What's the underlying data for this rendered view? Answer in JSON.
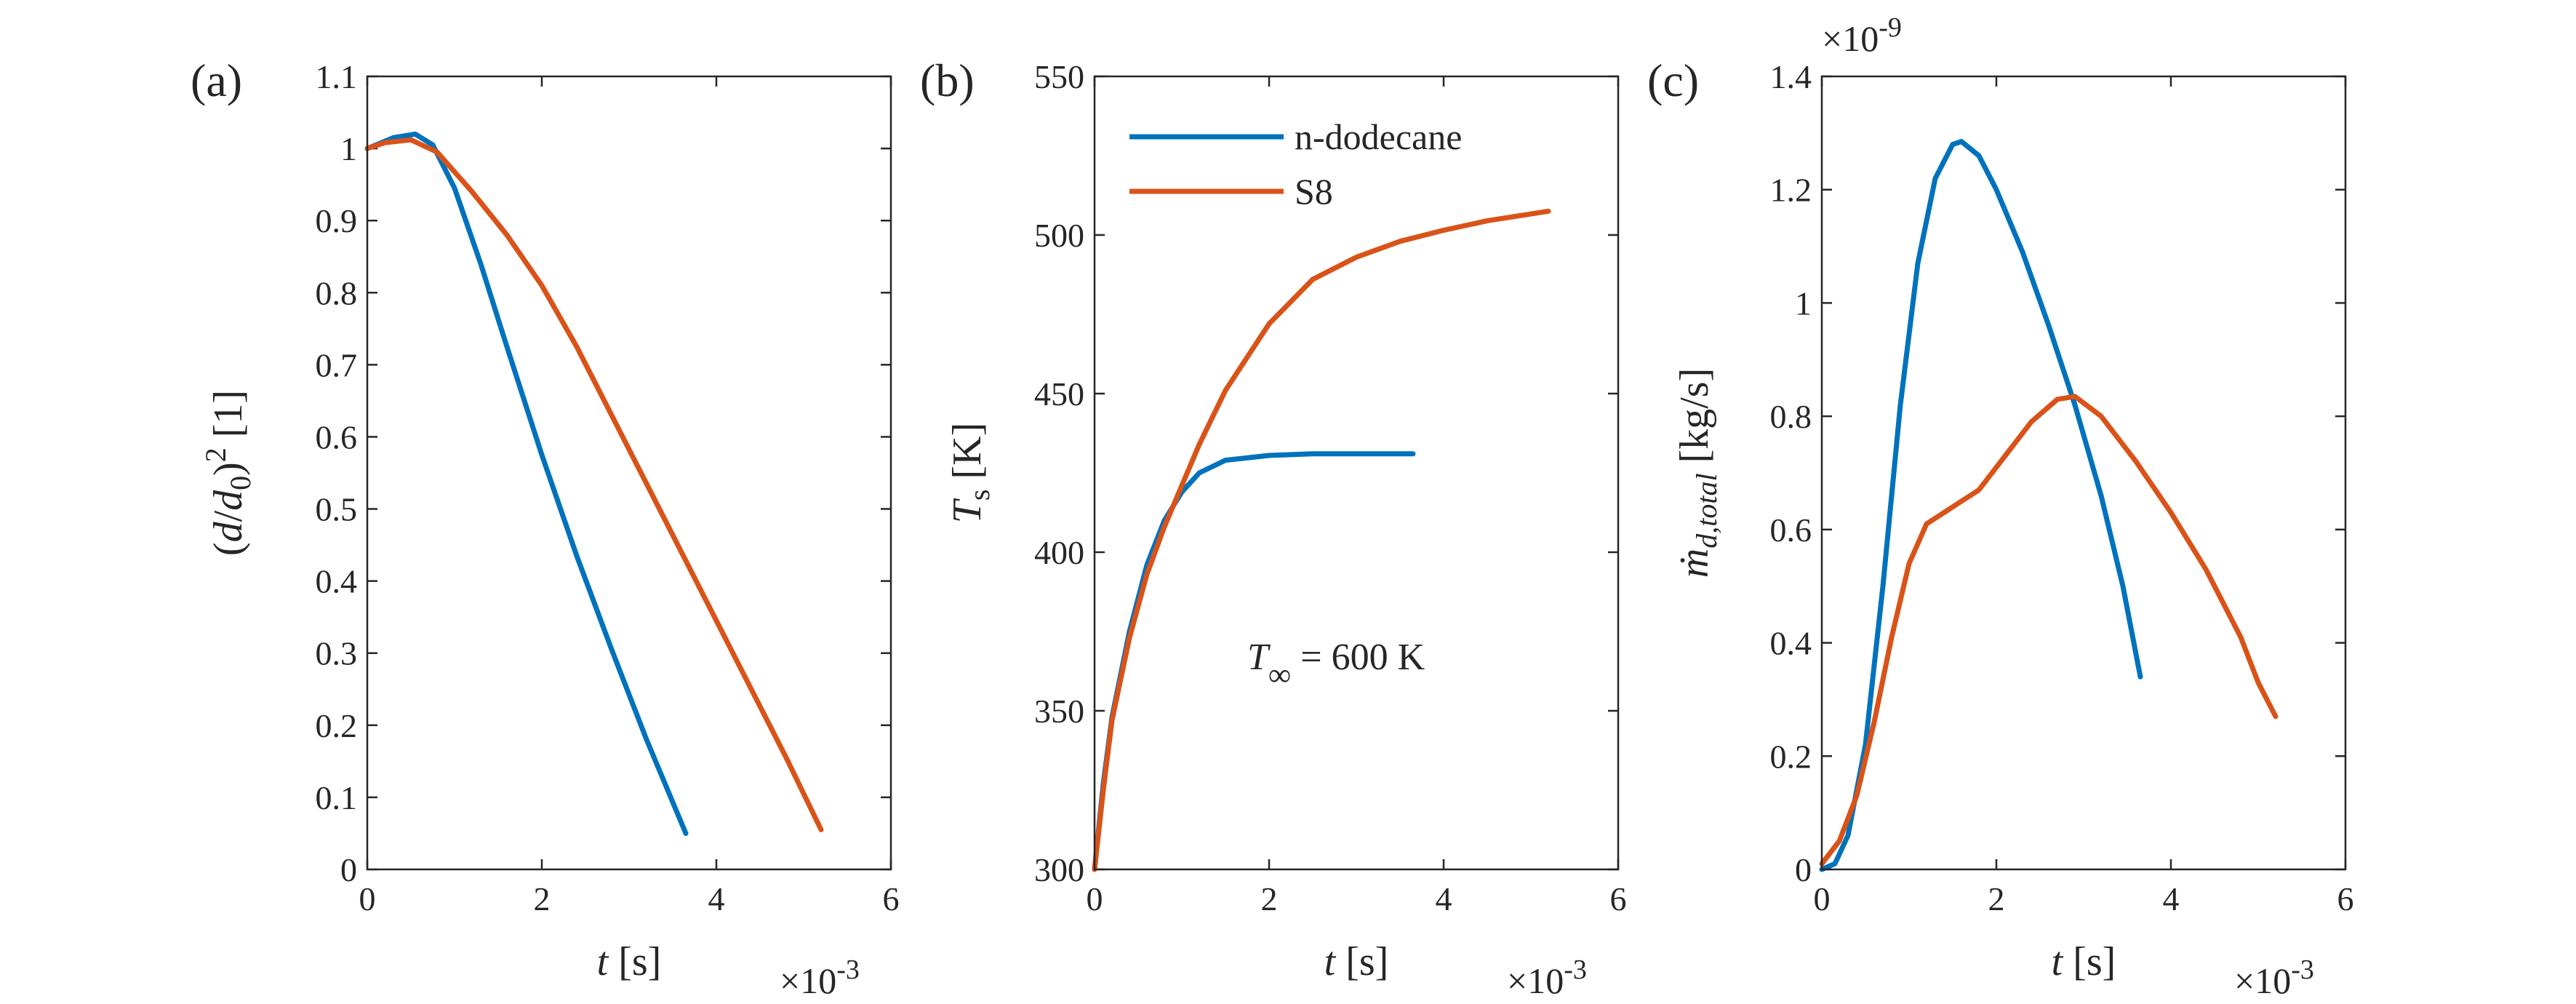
{
  "colors": {
    "blue": "#0072BD",
    "orange": "#D95319"
  },
  "legend": {
    "placement": "top-left of panel (b)",
    "entries": [
      {
        "label": "n-dodecane",
        "color": "#0072BD"
      },
      {
        "label": "S8",
        "color": "#D95319"
      }
    ]
  },
  "chart_data": [
    {
      "type": "line",
      "panel_label": "(a)",
      "xlabel": {
        "var": "t",
        "unit": " [s]"
      },
      "x_multiplier": {
        "base": "×10",
        "exp": "-3"
      },
      "ylabel": {
        "pre": "(",
        "v1": "d",
        "slash": "/",
        "v2": "d",
        "sub": "0",
        "post": ")",
        "sup": "2",
        "unit": " [1]"
      },
      "xlim": [
        0,
        6
      ],
      "ylim": [
        0,
        1.1
      ],
      "xticks": [
        0,
        2,
        4,
        6
      ],
      "xtick_labels": [
        "0",
        "2",
        "4",
        "6"
      ],
      "yticks": [
        0,
        0.1,
        0.2,
        0.3,
        0.4,
        0.5,
        0.6,
        0.7,
        0.8,
        0.9,
        1,
        1.1
      ],
      "ytick_labels": [
        "0",
        "0.1",
        "0.2",
        "0.3",
        "0.4",
        "0.5",
        "0.6",
        "0.7",
        "0.8",
        "0.9",
        "1",
        "1.1"
      ],
      "grid": false,
      "series": [
        {
          "color": "#0072BD",
          "x": [
            0,
            0.3,
            0.55,
            0.75,
            1.0,
            1.3,
            1.6,
            2.0,
            2.4,
            2.8,
            3.2,
            3.65
          ],
          "y": [
            1.0,
            1.015,
            1.02,
            1.005,
            0.945,
            0.84,
            0.725,
            0.575,
            0.435,
            0.305,
            0.18,
            0.05
          ]
        },
        {
          "color": "#D95319",
          "x": [
            0,
            0.2,
            0.5,
            0.8,
            1.2,
            1.6,
            2.0,
            2.4,
            2.8,
            3.2,
            3.6,
            4.0,
            4.4,
            4.8,
            5.2
          ],
          "y": [
            1.0,
            1.008,
            1.012,
            0.995,
            0.94,
            0.88,
            0.81,
            0.725,
            0.63,
            0.535,
            0.44,
            0.345,
            0.25,
            0.155,
            0.055
          ]
        }
      ]
    },
    {
      "type": "line",
      "panel_label": "(b)",
      "xlabel": {
        "var": "t",
        "unit": " [s]"
      },
      "x_multiplier": {
        "base": "×10",
        "exp": "-3"
      },
      "ylabel": {
        "var": "T",
        "sub": "s",
        "unit": " [K]"
      },
      "xlim": [
        0,
        6
      ],
      "ylim": [
        300,
        550
      ],
      "xticks": [
        0,
        2,
        4,
        6
      ],
      "xtick_labels": [
        "0",
        "2",
        "4",
        "6"
      ],
      "yticks": [
        300,
        350,
        400,
        450,
        500,
        550
      ],
      "ytick_labels": [
        "300",
        "350",
        "400",
        "450",
        "500",
        "550"
      ],
      "grid": false,
      "annotation": {
        "var": "T",
        "sub": "∞",
        "rest": " = 600 K",
        "x": 1.8,
        "y": 367
      },
      "series": [
        {
          "name": "n-dodecane",
          "color": "#0072BD",
          "x": [
            0,
            0.1,
            0.2,
            0.4,
            0.6,
            0.8,
            1.0,
            1.2,
            1.5,
            2.0,
            2.5,
            3.0,
            3.65
          ],
          "y": [
            300,
            327,
            348,
            375,
            396,
            410,
            419,
            425,
            429,
            430.5,
            431,
            431,
            431
          ]
        },
        {
          "name": "S8",
          "color": "#D95319",
          "x": [
            0,
            0.1,
            0.2,
            0.4,
            0.6,
            0.8,
            1.0,
            1.2,
            1.5,
            2.0,
            2.5,
            3.0,
            3.5,
            4.0,
            4.5,
            5.2
          ],
          "y": [
            300,
            325,
            347,
            373,
            393,
            408,
            421,
            434,
            451,
            472,
            486,
            493,
            498,
            501.5,
            504.5,
            507.5
          ]
        }
      ]
    },
    {
      "type": "line",
      "panel_label": "(c)",
      "xlabel": {
        "var": "t",
        "unit": " [s]"
      },
      "x_multiplier": {
        "base": "×10",
        "exp": "-3"
      },
      "y_multiplier": {
        "base": "×10",
        "exp": "-9"
      },
      "ylabel": {
        "var": "ṁ",
        "sub": "d,total",
        "unit": " [kg/s]"
      },
      "xlim": [
        0,
        6
      ],
      "ylim": [
        0,
        1.4
      ],
      "xticks": [
        0,
        2,
        4,
        6
      ],
      "xtick_labels": [
        "0",
        "2",
        "4",
        "6"
      ],
      "yticks": [
        0,
        0.2,
        0.4,
        0.6,
        0.8,
        1,
        1.2,
        1.4
      ],
      "ytick_labels": [
        "0",
        "0.2",
        "0.4",
        "0.6",
        "0.8",
        "1",
        "1.2",
        "1.4"
      ],
      "grid": false,
      "series": [
        {
          "color": "#0072BD",
          "x": [
            0,
            0.15,
            0.3,
            0.5,
            0.7,
            0.9,
            1.1,
            1.3,
            1.5,
            1.6,
            1.8,
            2.0,
            2.3,
            2.6,
            2.9,
            3.2,
            3.45,
            3.65
          ],
          "y": [
            0.0,
            0.01,
            0.06,
            0.22,
            0.5,
            0.82,
            1.07,
            1.22,
            1.28,
            1.285,
            1.26,
            1.2,
            1.09,
            0.96,
            0.82,
            0.66,
            0.5,
            0.34
          ]
        },
        {
          "color": "#D95319",
          "x": [
            0,
            0.2,
            0.4,
            0.6,
            0.8,
            1.0,
            1.2,
            1.5,
            1.8,
            2.1,
            2.4,
            2.7,
            2.9,
            3.2,
            3.6,
            4.0,
            4.4,
            4.8,
            5.0,
            5.2
          ],
          "y": [
            0.01,
            0.05,
            0.13,
            0.26,
            0.41,
            0.54,
            0.61,
            0.64,
            0.67,
            0.73,
            0.79,
            0.83,
            0.835,
            0.8,
            0.72,
            0.63,
            0.53,
            0.41,
            0.33,
            0.27
          ]
        }
      ]
    }
  ]
}
